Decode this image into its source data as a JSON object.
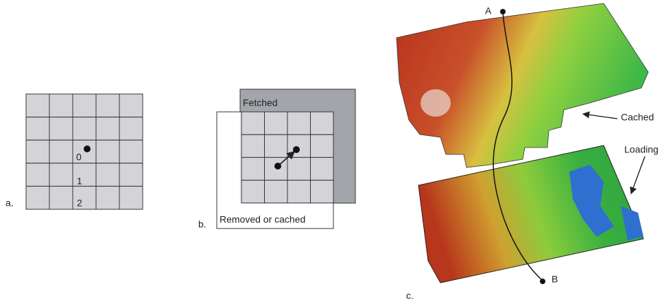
{
  "panel_a": {
    "label": "a.",
    "levels": [
      "0",
      "1",
      "2"
    ]
  },
  "panel_b": {
    "label": "b.",
    "fetched": "Fetched",
    "removed": "Removed or cached"
  },
  "panel_c": {
    "label": "c.",
    "start": "A",
    "end": "B",
    "cached": "Cached",
    "loading": "Loading"
  }
}
